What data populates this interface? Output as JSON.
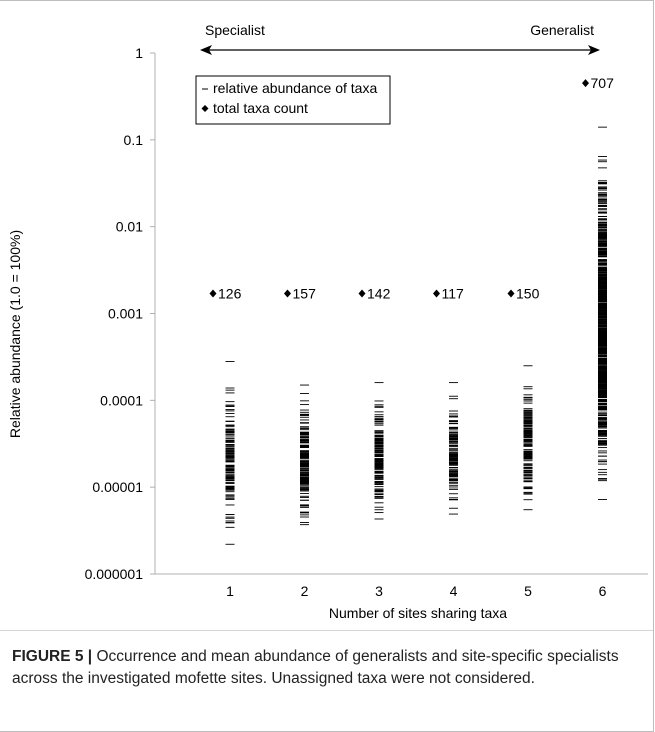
{
  "chart_data": {
    "type": "scatter",
    "ylabel": "Relative abundance (1.0 = 100%)",
    "xlabel": "Number of sites sharing taxa",
    "y_scale": "log",
    "ylim": [
      1e-06,
      1
    ],
    "y_ticks": [
      {
        "value": 1,
        "label": "1"
      },
      {
        "value": 0.1,
        "label": "0.1"
      },
      {
        "value": 0.01,
        "label": "0.01"
      },
      {
        "value": 0.001,
        "label": "0.001"
      },
      {
        "value": 0.0001,
        "label": "0.0001"
      },
      {
        "value": 1e-05,
        "label": "0.00001"
      },
      {
        "value": 1e-06,
        "label": "0.000001"
      }
    ],
    "categories": [
      "1",
      "2",
      "3",
      "4",
      "5",
      "6"
    ],
    "arrow_left_label": "Specialist",
    "arrow_right_label": "Generalist",
    "legend": {
      "placement": "top-left",
      "items": [
        {
          "marker": "dash",
          "label": "relative abundance of taxa"
        },
        {
          "marker": "diamond",
          "label": "total taxa count"
        }
      ]
    },
    "series": [
      {
        "name": "total taxa count",
        "marker": "diamond",
        "points": [
          {
            "x": "1",
            "y": 0.0017,
            "label": "126"
          },
          {
            "x": "2",
            "y": 0.0017,
            "label": "157"
          },
          {
            "x": "3",
            "y": 0.0017,
            "label": "142"
          },
          {
            "x": "4",
            "y": 0.0017,
            "label": "117"
          },
          {
            "x": "5",
            "y": 0.0017,
            "label": "150"
          },
          {
            "x": "6",
            "y": 0.45,
            "label": "707"
          }
        ]
      },
      {
        "name": "relative abundance of taxa",
        "marker": "dash",
        "ranges": [
          {
            "x": "1",
            "count": 126,
            "min": 2.2e-06,
            "max": 0.00028
          },
          {
            "x": "2",
            "count": 157,
            "min": 3.7e-06,
            "max": 0.00015
          },
          {
            "x": "3",
            "count": 142,
            "min": 4.3e-06,
            "max": 0.00016
          },
          {
            "x": "4",
            "count": 117,
            "min": 4.9e-06,
            "max": 0.00016
          },
          {
            "x": "5",
            "count": 150,
            "min": 5.5e-06,
            "max": 0.00025
          },
          {
            "x": "6",
            "count": 707,
            "min": 7.2e-06,
            "max": 0.14
          }
        ]
      }
    ]
  },
  "caption": {
    "label": "FIGURE 5 |",
    "text": " Occurrence and mean abundance of generalists and site-specific specialists across the investigated mofette sites. Unassigned taxa were not considered."
  }
}
